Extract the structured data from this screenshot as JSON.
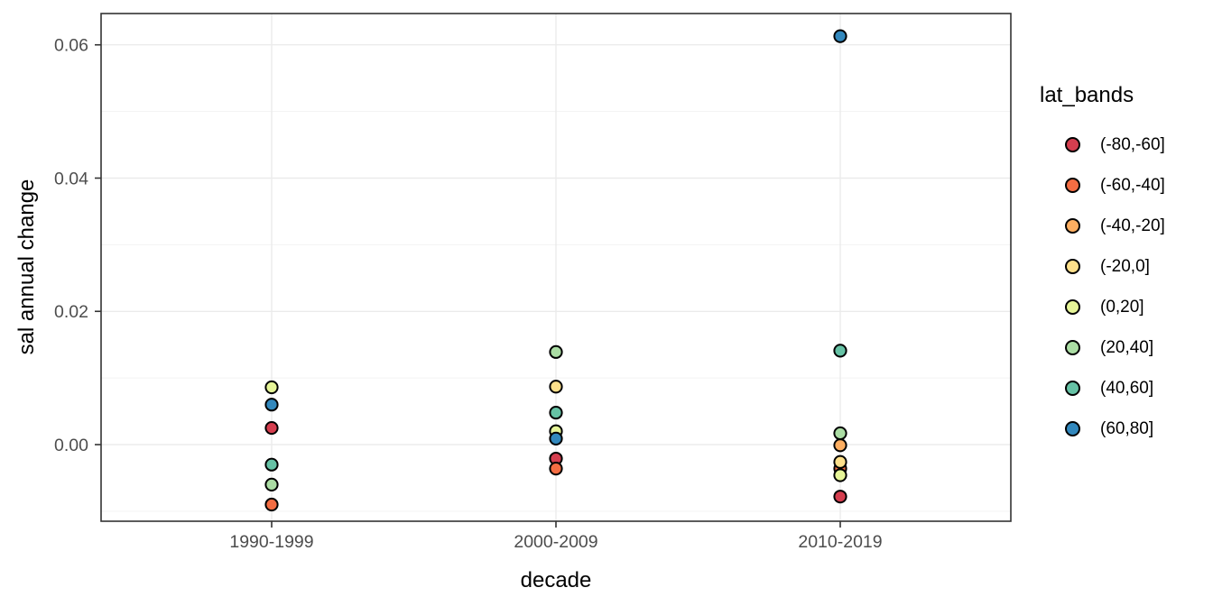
{
  "figure": {
    "x_axis_title": "decade",
    "y_axis_title": "sal annual change",
    "legend_title": "lat_bands"
  },
  "colors": {
    "panel_border": "#333333",
    "grid_major": "#ebebeb",
    "grid_minor": "#f3f3f3",
    "tick_mark": "#333333",
    "tick_label": "#4d4d4d",
    "point_stroke": "#000000",
    "background": "#ffffff"
  },
  "chart_data": {
    "type": "scatter",
    "title": "",
    "xlabel": "decade",
    "ylabel": "sal annual change",
    "legend_title": "lat_bands",
    "legend_position": "right",
    "grid": true,
    "categories": [
      "1990-1999",
      "2000-2009",
      "2010-2019"
    ],
    "x_positions": [
      0.1875,
      0.5,
      0.8125
    ],
    "ylim": [
      -0.0115,
      0.0647
    ],
    "y_major_ticks": [
      0.0,
      0.02,
      0.04,
      0.06
    ],
    "y_tick_labels": [
      "0.00",
      "0.02",
      "0.04",
      "0.06"
    ],
    "y_minor_ticks": [
      -0.01,
      0.01,
      0.03,
      0.05
    ],
    "series": [
      {
        "name": "(-80,-60]",
        "color": "#d53e4f",
        "values": [
          0.0025,
          -0.0021,
          -0.0078
        ]
      },
      {
        "name": "(-60,-40]",
        "color": "#f46d43",
        "values": [
          -0.009,
          -0.0036,
          -0.0036
        ]
      },
      {
        "name": "(-40,-20]",
        "color": "#fdae61",
        "values": [
          null,
          null,
          -0.0001
        ]
      },
      {
        "name": "(-20,0]",
        "color": "#fee08b",
        "values": [
          null,
          0.0087,
          -0.0026
        ]
      },
      {
        "name": "(0,20]",
        "color": "#e6f598",
        "values": [
          0.0086,
          0.002,
          -0.0046
        ]
      },
      {
        "name": "(20,40]",
        "color": "#abdda4",
        "values": [
          -0.006,
          0.0139,
          0.0017
        ]
      },
      {
        "name": "(40,60]",
        "color": "#66c2a5",
        "values": [
          -0.003,
          0.0048,
          0.0141
        ]
      },
      {
        "name": "(60,80]",
        "color": "#3288bd",
        "values": [
          0.006,
          0.0009,
          0.0613
        ]
      }
    ]
  }
}
